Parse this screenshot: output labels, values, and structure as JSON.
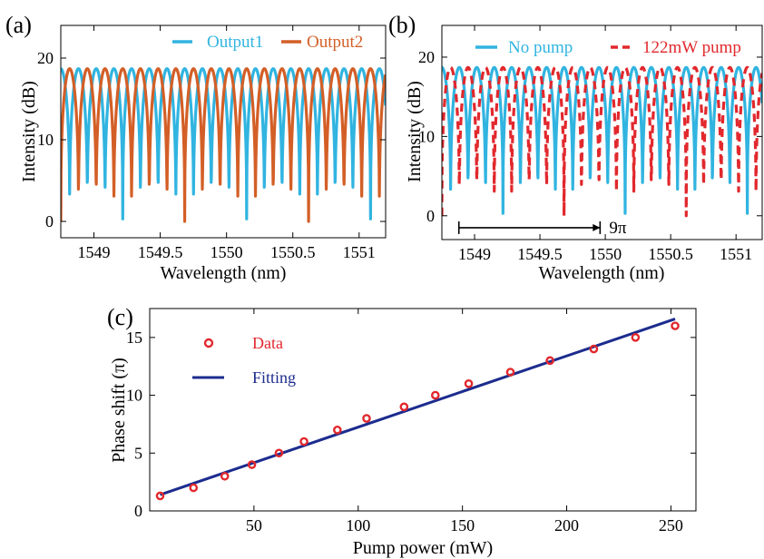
{
  "chart_data": [
    {
      "panel_label": "(a)",
      "type": "line",
      "xlabel": "Wavelength (nm)",
      "ylabel": "Intensity (dB)",
      "xlim": [
        1548.75,
        1551.2
      ],
      "ylim": [
        -2,
        24
      ],
      "xticks": [
        1549,
        1549.5,
        1550,
        1550.5,
        1551
      ],
      "xtick_labels": [
        "1549",
        "1549.5",
        "1550",
        "1550.5",
        "1551"
      ],
      "yticks": [
        0,
        10,
        20
      ],
      "ytick_labels": [
        "0",
        "10",
        "20"
      ],
      "legend_position": "top",
      "series": [
        {
          "name": "Output1",
          "color": "#31b4e0",
          "style": "solid",
          "min_db": 0.3,
          "max_db": 18.7,
          "fringe_period_nm": 0.1335,
          "phase": 0
        },
        {
          "name": "Output2",
          "color": "#d35f27",
          "style": "solid",
          "min_db": 0.0,
          "max_db": 18.7,
          "fringe_period_nm": 0.1335,
          "phase": 0.5
        }
      ]
    },
    {
      "panel_label": "(b)",
      "type": "line",
      "xlabel": "Wavelength (nm)",
      "ylabel": "Intensity (dB)",
      "xlim": [
        1548.75,
        1551.2
      ],
      "ylim": [
        -3,
        24
      ],
      "xticks": [
        1549,
        1549.5,
        1550,
        1550.5,
        1551
      ],
      "xtick_labels": [
        "1549",
        "1549.5",
        "1550",
        "1550.5",
        "1551"
      ],
      "yticks": [
        0,
        10,
        20
      ],
      "ytick_labels": [
        "0",
        "10",
        "20"
      ],
      "legend_position": "top",
      "series": [
        {
          "name": "No pump",
          "color": "#31b4e0",
          "style": "solid",
          "min_db": 0.3,
          "max_db": 18.7,
          "fringe_period_nm": 0.1335,
          "phase": 0
        },
        {
          "name": "122mW pump",
          "color": "#e1282d",
          "style": "dashed",
          "min_db": 0.0,
          "max_db": 18.7,
          "fringe_period_nm": 0.1335,
          "phase": 0.5
        }
      ],
      "annotation": {
        "text": "9π",
        "x_start": 1548.88,
        "x_end": 1549.96,
        "y": -1.5
      }
    },
    {
      "panel_label": "(c)",
      "type": "scatter",
      "xlabel": "Pump power (mW)",
      "ylabel": "Phase shift (π)",
      "xlim": [
        0,
        262
      ],
      "ylim": [
        0,
        17.5
      ],
      "xticks": [
        50,
        100,
        150,
        200,
        250
      ],
      "xtick_labels": [
        "50",
        "100",
        "150",
        "200",
        "250"
      ],
      "yticks": [
        0,
        5,
        10,
        15
      ],
      "ytick_labels": [
        "0",
        "5",
        "10",
        "15"
      ],
      "legend_position": "top-left",
      "series": [
        {
          "name": "Data",
          "color": "#e1282d",
          "marker": "circle-open",
          "x": [
            5,
            21,
            36,
            49,
            62,
            74,
            90,
            104,
            122,
            137,
            153,
            173,
            192,
            213,
            233,
            252
          ],
          "y": [
            1.3,
            2,
            3,
            4,
            5,
            6,
            7,
            8,
            9,
            10,
            11,
            12,
            13,
            14,
            15,
            16
          ]
        },
        {
          "name": "Fitting",
          "color": "#1c2c8e",
          "style": "solid",
          "x": [
            5,
            252
          ],
          "y": [
            1.4,
            16.6
          ]
        }
      ]
    }
  ]
}
